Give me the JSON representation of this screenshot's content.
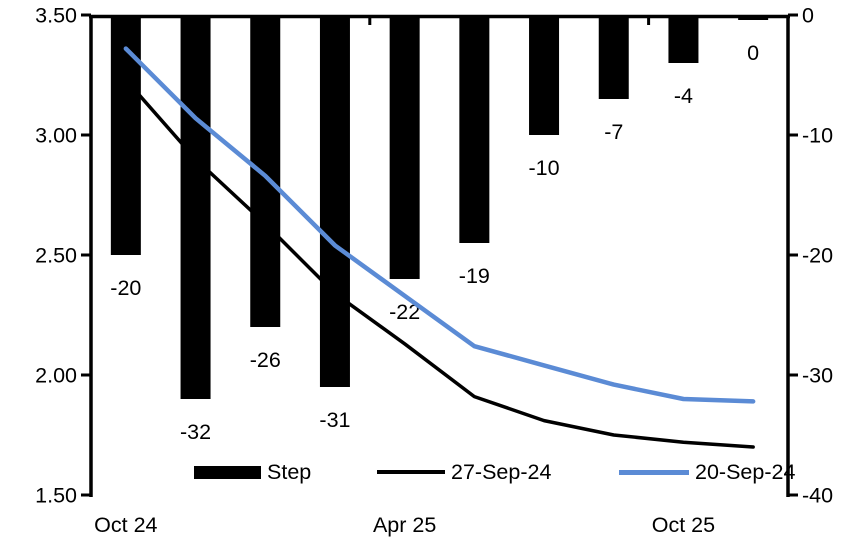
{
  "chart_data": {
    "type": "combo",
    "subtype": [
      "bar",
      "line",
      "line"
    ],
    "categories": [
      "Oct 24",
      "",
      "",
      "",
      "Apr 25",
      "",
      "",
      "",
      "Oct 25",
      ""
    ],
    "x_tick_labels": [
      {
        "index": 0,
        "label": "Oct 24"
      },
      {
        "index": 4,
        "label": "Apr 25"
      },
      {
        "index": 8,
        "label": "Oct 25"
      }
    ],
    "series": [
      {
        "name": "Step",
        "type": "bar",
        "axis": "right",
        "color": "#000000",
        "values": [
          -20,
          -32,
          -26,
          -31,
          -22,
          -19,
          -10,
          -7,
          -4,
          0
        ],
        "data_labels": [
          "-20",
          "-32",
          "-26",
          "-31",
          "-22",
          "-19",
          "-10",
          "-7",
          "-4",
          "0"
        ]
      },
      {
        "name": "27-Sep-24",
        "type": "line",
        "axis": "left",
        "color": "#000000",
        "values": [
          3.23,
          2.9,
          2.63,
          2.34,
          2.13,
          1.91,
          1.81,
          1.75,
          1.72,
          1.7
        ]
      },
      {
        "name": "20-Sep-24",
        "type": "line",
        "axis": "left",
        "color": "#5B8BD5",
        "values": [
          3.36,
          3.07,
          2.83,
          2.54,
          2.33,
          2.12,
          2.04,
          1.96,
          1.9,
          1.89
        ]
      }
    ],
    "left_axis": {
      "min": 1.5,
      "max": 3.5,
      "tick_interval": 0.5,
      "tick_labels": [
        "3.50",
        "3.00",
        "2.50",
        "2.00",
        "1.50"
      ]
    },
    "right_axis": {
      "min": -40,
      "max": 0,
      "tick_interval": 10,
      "tick_labels": [
        "0",
        "-10",
        "-20",
        "-30",
        "-40"
      ]
    },
    "grid": "off",
    "legend_position": "bottom"
  },
  "legend": {
    "items": [
      {
        "label": "Step",
        "swatch": "bar",
        "color": "#000000"
      },
      {
        "label": "27-Sep-24",
        "swatch": "line",
        "color": "#000000"
      },
      {
        "label": "20-Sep-24",
        "swatch": "line",
        "color": "#5B8BD5"
      }
    ]
  },
  "colors": {
    "bar": "#000000",
    "line_27sep": "#000000",
    "line_20sep": "#5B8BD5",
    "axis": "#000000",
    "background": "#ffffff"
  }
}
